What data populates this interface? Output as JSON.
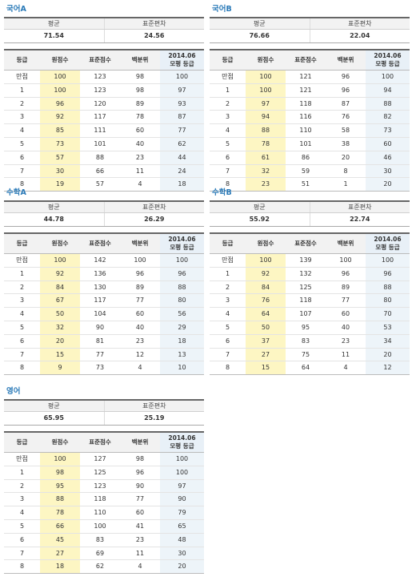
{
  "headers": {
    "avg": "평균",
    "sd": "표준편차",
    "grade": "등급",
    "raw": "원점수",
    "std": "표준점수",
    "pct": "백분위",
    "mock_line1": "2014.06",
    "mock_line2": "모평 등급"
  },
  "blocks": [
    {
      "title": "국어A",
      "avg": "71.54",
      "sd": "24.56",
      "rows": [
        [
          "만점",
          "100",
          "123",
          "98",
          "100"
        ],
        [
          "1",
          "100",
          "123",
          "98",
          "97"
        ],
        [
          "2",
          "96",
          "120",
          "89",
          "93"
        ],
        [
          "3",
          "92",
          "117",
          "78",
          "87"
        ],
        [
          "4",
          "85",
          "111",
          "60",
          "77"
        ],
        [
          "5",
          "73",
          "101",
          "40",
          "62"
        ],
        [
          "6",
          "57",
          "88",
          "23",
          "44"
        ],
        [
          "7",
          "30",
          "66",
          "11",
          "24"
        ],
        [
          "8",
          "19",
          "57",
          "4",
          "18"
        ]
      ]
    },
    {
      "title": "국어B",
      "avg": "76.66",
      "sd": "22.04",
      "rows": [
        [
          "만점",
          "100",
          "121",
          "96",
          "100"
        ],
        [
          "1",
          "100",
          "121",
          "96",
          "94"
        ],
        [
          "2",
          "97",
          "118",
          "87",
          "88"
        ],
        [
          "3",
          "94",
          "116",
          "76",
          "82"
        ],
        [
          "4",
          "88",
          "110",
          "58",
          "73"
        ],
        [
          "5",
          "78",
          "101",
          "38",
          "60"
        ],
        [
          "6",
          "61",
          "86",
          "20",
          "46"
        ],
        [
          "7",
          "32",
          "59",
          "8",
          "30"
        ],
        [
          "8",
          "23",
          "51",
          "1",
          "20"
        ]
      ]
    },
    {
      "title": "수학A",
      "avg": "44.78",
      "sd": "26.29",
      "rows": [
        [
          "만점",
          "100",
          "142",
          "100",
          "100"
        ],
        [
          "1",
          "92",
          "136",
          "96",
          "96"
        ],
        [
          "2",
          "84",
          "130",
          "89",
          "88"
        ],
        [
          "3",
          "67",
          "117",
          "77",
          "80"
        ],
        [
          "4",
          "50",
          "104",
          "60",
          "56"
        ],
        [
          "5",
          "32",
          "90",
          "40",
          "29"
        ],
        [
          "6",
          "20",
          "81",
          "23",
          "18"
        ],
        [
          "7",
          "15",
          "77",
          "12",
          "13"
        ],
        [
          "8",
          "9",
          "73",
          "4",
          "10"
        ]
      ]
    },
    {
      "title": "수학B",
      "avg": "55.92",
      "sd": "22.74",
      "rows": [
        [
          "만점",
          "100",
          "139",
          "100",
          "100"
        ],
        [
          "1",
          "92",
          "132",
          "96",
          "96"
        ],
        [
          "2",
          "84",
          "125",
          "89",
          "88"
        ],
        [
          "3",
          "76",
          "118",
          "77",
          "80"
        ],
        [
          "4",
          "64",
          "107",
          "60",
          "70"
        ],
        [
          "5",
          "50",
          "95",
          "40",
          "53"
        ],
        [
          "6",
          "37",
          "83",
          "23",
          "34"
        ],
        [
          "7",
          "27",
          "75",
          "11",
          "20"
        ],
        [
          "8",
          "15",
          "64",
          "4",
          "12"
        ]
      ]
    },
    {
      "title": "영어",
      "avg": "65.95",
      "sd": "25.19",
      "rows": [
        [
          "만점",
          "100",
          "127",
          "98",
          "100"
        ],
        [
          "1",
          "98",
          "125",
          "96",
          "100"
        ],
        [
          "2",
          "95",
          "123",
          "90",
          "97"
        ],
        [
          "3",
          "88",
          "118",
          "77",
          "90"
        ],
        [
          "4",
          "78",
          "110",
          "60",
          "79"
        ],
        [
          "5",
          "66",
          "100",
          "41",
          "65"
        ],
        [
          "6",
          "45",
          "83",
          "23",
          "48"
        ],
        [
          "7",
          "27",
          "69",
          "11",
          "30"
        ],
        [
          "8",
          "18",
          "62",
          "4",
          "20"
        ]
      ]
    }
  ],
  "colors": {
    "title": "#2a7ab8",
    "raw_highlight": "#fdf6c3",
    "mock_highlight": "#edf4f9"
  }
}
